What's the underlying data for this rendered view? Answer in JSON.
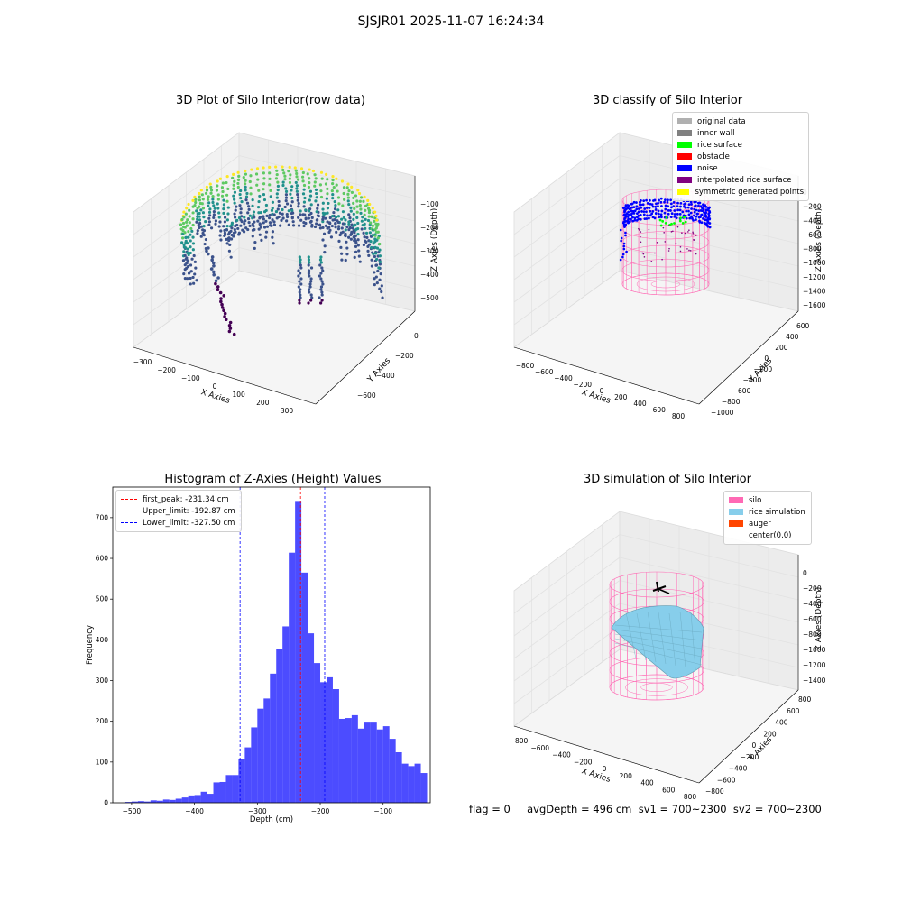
{
  "figure": {
    "suptitle": "SJSJR01 2025-11-07 16:24:34",
    "footer": "flag = 0     avgDepth = 496 cm  sv1 = 700~2300  sv2 = 700~2300"
  },
  "panel1": {
    "title": "3D Plot of Silo Interior(row data)",
    "xlabel": "X Axies",
    "ylabel": "Y Axies",
    "zlabel": "Z Axies (Depth)",
    "xticks": [
      "−300",
      "−200",
      "−100",
      "0",
      "100",
      "200",
      "300"
    ],
    "yticks": [
      "−600",
      "−400",
      "−200",
      "0"
    ],
    "zticks": [
      "−100",
      "−200",
      "−300",
      "−400",
      "−500"
    ],
    "colormap": [
      "#440154",
      "#3b528b",
      "#21918c",
      "#5ec962",
      "#fde725"
    ]
  },
  "panel2": {
    "title": "3D classify of Silo Interior",
    "xlabel": "X Axies",
    "ylabel": "Y Axies",
    "zlabel": "Z Axies (Depth)",
    "xticks": [
      "−800",
      "−600",
      "−400",
      "−200",
      "0",
      "200",
      "400",
      "600",
      "800"
    ],
    "yticks": [
      "−1000",
      "−800",
      "−600",
      "−400",
      "−200",
      "0",
      "200",
      "400",
      "600"
    ],
    "zticks": [
      "0",
      "−200",
      "−400",
      "−600",
      "−800",
      "−1000",
      "−1200",
      "−1400",
      "−1600"
    ],
    "legend": [
      {
        "label": "original data",
        "color": "#b0b0b0"
      },
      {
        "label": "inner wall",
        "color": "#808080"
      },
      {
        "label": "rice surface",
        "color": "#00ff00"
      },
      {
        "label": "obstacle",
        "color": "#ff0000"
      },
      {
        "label": "noise",
        "color": "#0000ff"
      },
      {
        "label": "interpolated rice surface",
        "color": "#800080"
      },
      {
        "label": "symmetric generated points",
        "color": "#ffff00"
      }
    ]
  },
  "panel4": {
    "title": "3D simulation of Silo Interior",
    "xlabel": "X Axies",
    "ylabel": "Y Axies",
    "zlabel": "Z Axies (Depth)",
    "xticks": [
      "−800",
      "−600",
      "−400",
      "−200",
      "0",
      "200",
      "400",
      "600",
      "800"
    ],
    "yticks": [
      "−800",
      "−600",
      "−400",
      "−200",
      "0",
      "200",
      "400",
      "600",
      "800"
    ],
    "zticks": [
      "0",
      "−200",
      "−400",
      "−600",
      "−800",
      "−1000",
      "−1200",
      "−1400"
    ],
    "legend": [
      {
        "label": "silo",
        "color": "#ff69b4"
      },
      {
        "label": "rice simulation",
        "color": "#87ceeb"
      },
      {
        "label": "auger",
        "color": "#ff4500"
      },
      {
        "label": "center(0,0)",
        "color": ""
      }
    ]
  },
  "chart_data": {
    "type": "bar",
    "title": "Histogram of Z-Axies (Height) Values",
    "xlabel": "Depth (cm)",
    "ylabel": "Frequency",
    "bar_color": "#0000ff",
    "xlim": [
      -530,
      -25
    ],
    "ylim": [
      0,
      775
    ],
    "xticks": [
      -500,
      -400,
      -300,
      -200,
      -100
    ],
    "xtick_labels": [
      "−500",
      "−400",
      "−300",
      "−200",
      "−100"
    ],
    "yticks": [
      0,
      100,
      200,
      300,
      400,
      500,
      600,
      700
    ],
    "bin_start": -510,
    "bin_width": 10,
    "values": [
      2,
      3,
      4,
      3,
      6,
      5,
      8,
      7,
      10,
      13,
      18,
      19,
      27,
      22,
      50,
      51,
      68,
      68,
      108,
      136,
      185,
      231,
      256,
      317,
      377,
      433,
      614,
      741,
      565,
      416,
      343,
      296,
      308,
      279,
      206,
      208,
      215,
      182,
      199,
      199,
      180,
      188,
      157,
      124,
      96,
      90,
      96,
      73
    ],
    "vlines": [
      {
        "label": "first_peak: -231.34 cm",
        "x": -231.34,
        "color": "#ff0000"
      },
      {
        "label": "Upper_limit: -192.87 cm",
        "x": -192.87,
        "color": "#0000ff"
      },
      {
        "label": "Lower_limit: -327.50 cm",
        "x": -327.5,
        "color": "#0000ff"
      }
    ],
    "grid": false,
    "legend_position": "upper-left"
  }
}
